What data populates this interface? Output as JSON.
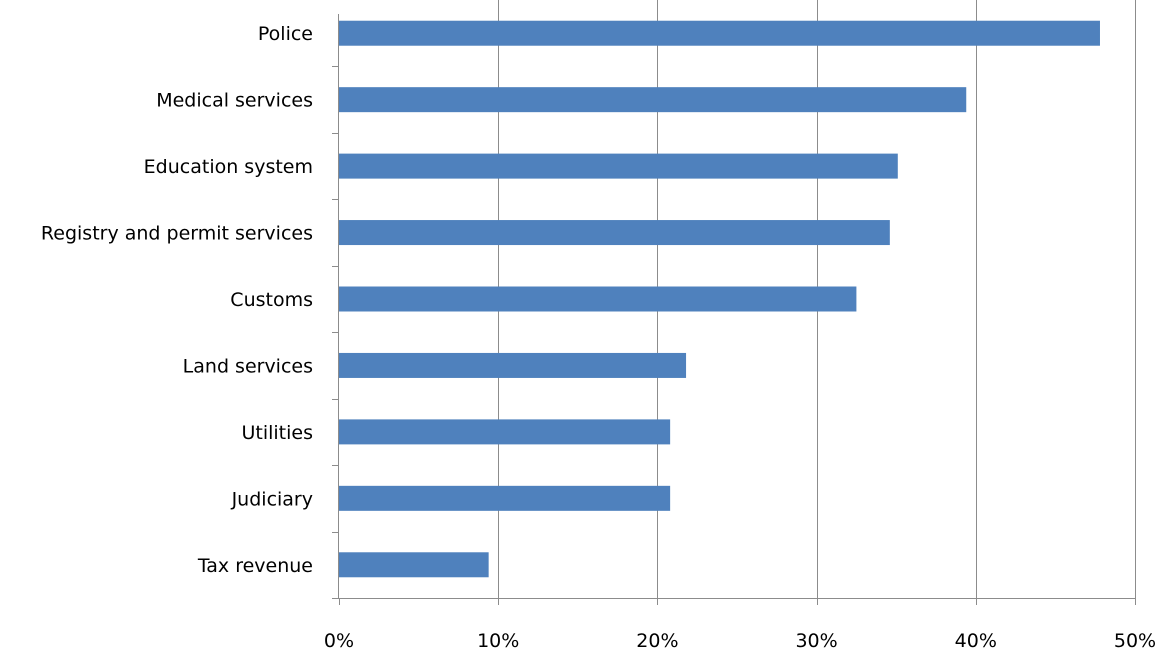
{
  "chart_data": {
    "type": "bar",
    "orientation": "horizontal",
    "categories": [
      "Police",
      "Medical services",
      "Education system",
      "Registry and permit services",
      "Customs",
      "Land services",
      "Utilities",
      "Judiciary",
      "Tax revenue"
    ],
    "values": [
      47.8,
      39.4,
      35.1,
      34.6,
      32.5,
      21.8,
      20.8,
      20.8,
      9.4
    ],
    "value_unit": "%",
    "xlim": [
      0,
      50
    ],
    "x_ticks": [
      0,
      10,
      20,
      30,
      40,
      50
    ],
    "x_tick_labels": [
      "0%",
      "10%",
      "20%",
      "30%",
      "40%",
      "50%"
    ],
    "title": "",
    "xlabel": "",
    "ylabel": "",
    "grid": "vertical",
    "legend": "none",
    "colors": {
      "bar": "#4f81bd",
      "grid": "#8c8c8c",
      "axis": "#8c8c8c",
      "text": "#000000"
    }
  }
}
